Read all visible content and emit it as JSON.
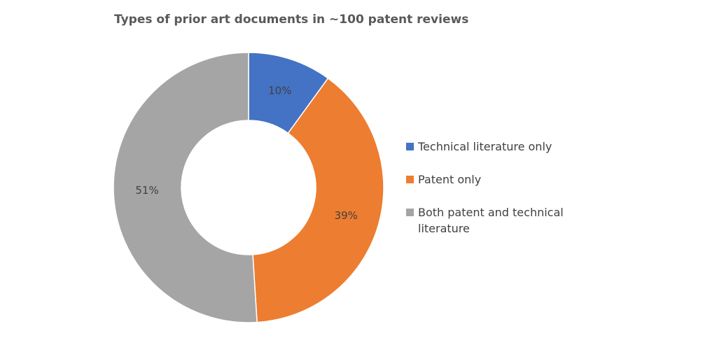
{
  "chart_data": {
    "type": "donut",
    "title": "Types of prior art documents in ~100 patent reviews",
    "categories": [
      "Technical literature only",
      "Patent only",
      "Both patent and technical literature"
    ],
    "values": [
      10,
      39,
      51
    ],
    "value_labels": [
      "10%",
      "39%",
      "51%"
    ],
    "colors": [
      "#4472c4",
      "#ed7d31",
      "#a5a5a5"
    ],
    "legend": "right"
  }
}
